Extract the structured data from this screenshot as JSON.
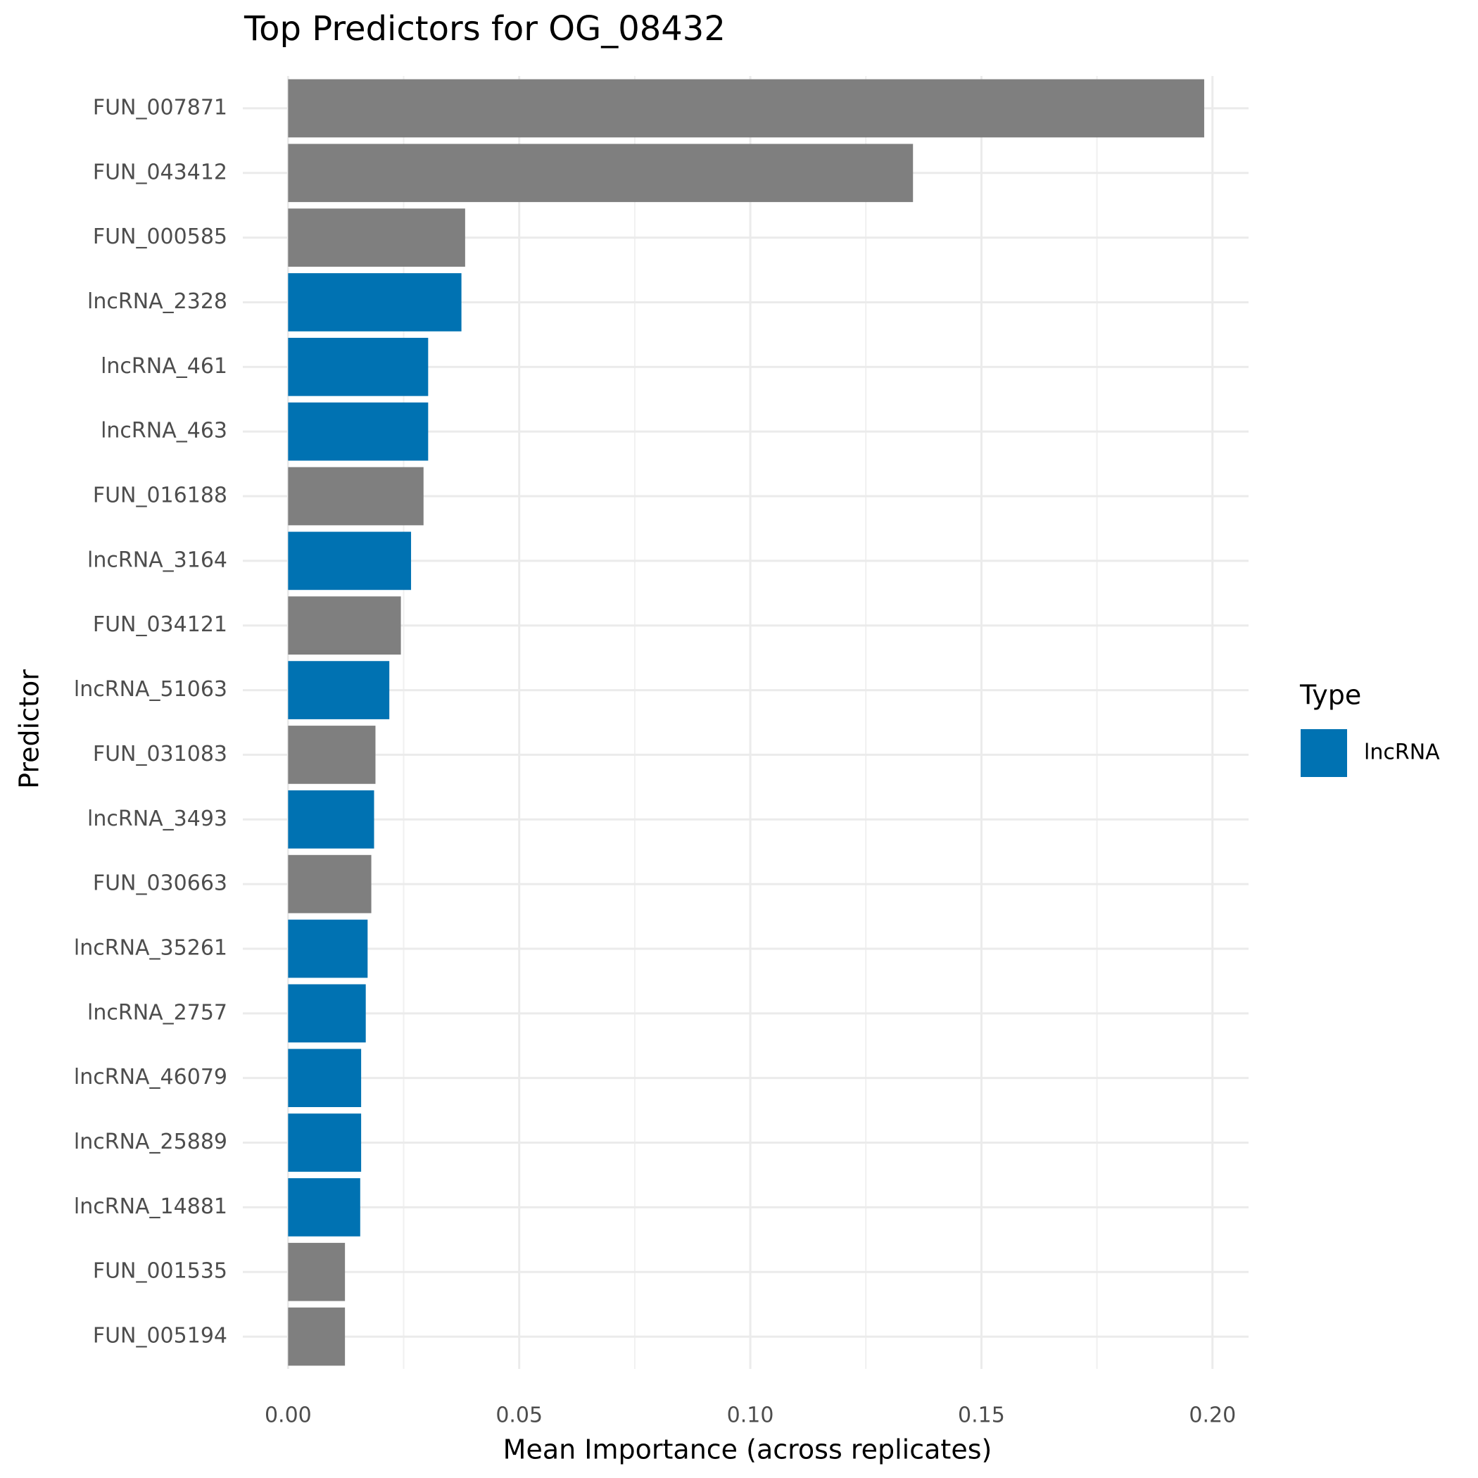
{
  "chart_data": {
    "type": "hbar",
    "title": "Top Predictors for OG_08432",
    "x_label": "Mean Importance (across replicates)",
    "y_label": "Predictor",
    "categories": [
      "FUN_007871",
      "FUN_043412",
      "FUN_000585",
      "lncRNA_2328",
      "lncRNA_461",
      "lncRNA_463",
      "FUN_016188",
      "lncRNA_3164",
      "FUN_034121",
      "lncRNA_51063",
      "FUN_031083",
      "lncRNA_3493",
      "FUN_030663",
      "lncRNA_35261",
      "lncRNA_2757",
      "lncRNA_46079",
      "lncRNA_25889",
      "lncRNA_14881",
      "FUN_001535",
      "FUN_005194"
    ],
    "values": [
      0.1982,
      0.1352,
      0.0383,
      0.0375,
      0.0303,
      0.0303,
      0.0293,
      0.0266,
      0.0244,
      0.0219,
      0.0189,
      0.0186,
      0.018,
      0.0172,
      0.0168,
      0.0158,
      0.0158,
      0.0156,
      0.0123,
      0.0123
    ],
    "colors": [
      "#7f7f7f",
      "#7f7f7f",
      "#7f7f7f",
      "#0072b2",
      "#0072b2",
      "#0072b2",
      "#7f7f7f",
      "#0072b2",
      "#7f7f7f",
      "#0072b2",
      "#7f7f7f",
      "#0072b2",
      "#7f7f7f",
      "#0072b2",
      "#0072b2",
      "#0072b2",
      "#0072b2",
      "#0072b2",
      "#7f7f7f",
      "#7f7f7f"
    ],
    "xlim": [
      -0.0098,
      0.2078
    ],
    "xticks": [
      {
        "value": 0,
        "label": "0.00"
      },
      {
        "value": 0.05,
        "label": "0.05"
      },
      {
        "value": 0.1,
        "label": "0.10"
      },
      {
        "value": 0.15,
        "label": "0.15"
      },
      {
        "value": 0.2,
        "label": "0.20"
      }
    ],
    "minor_xticks": [
      0.025,
      0.075,
      0.125,
      0.175
    ],
    "grid": true,
    "legend": {
      "title": "Type",
      "position": "right",
      "entries": [
        {
          "name": "lncRNA",
          "color": "#0072b2"
        }
      ]
    }
  }
}
